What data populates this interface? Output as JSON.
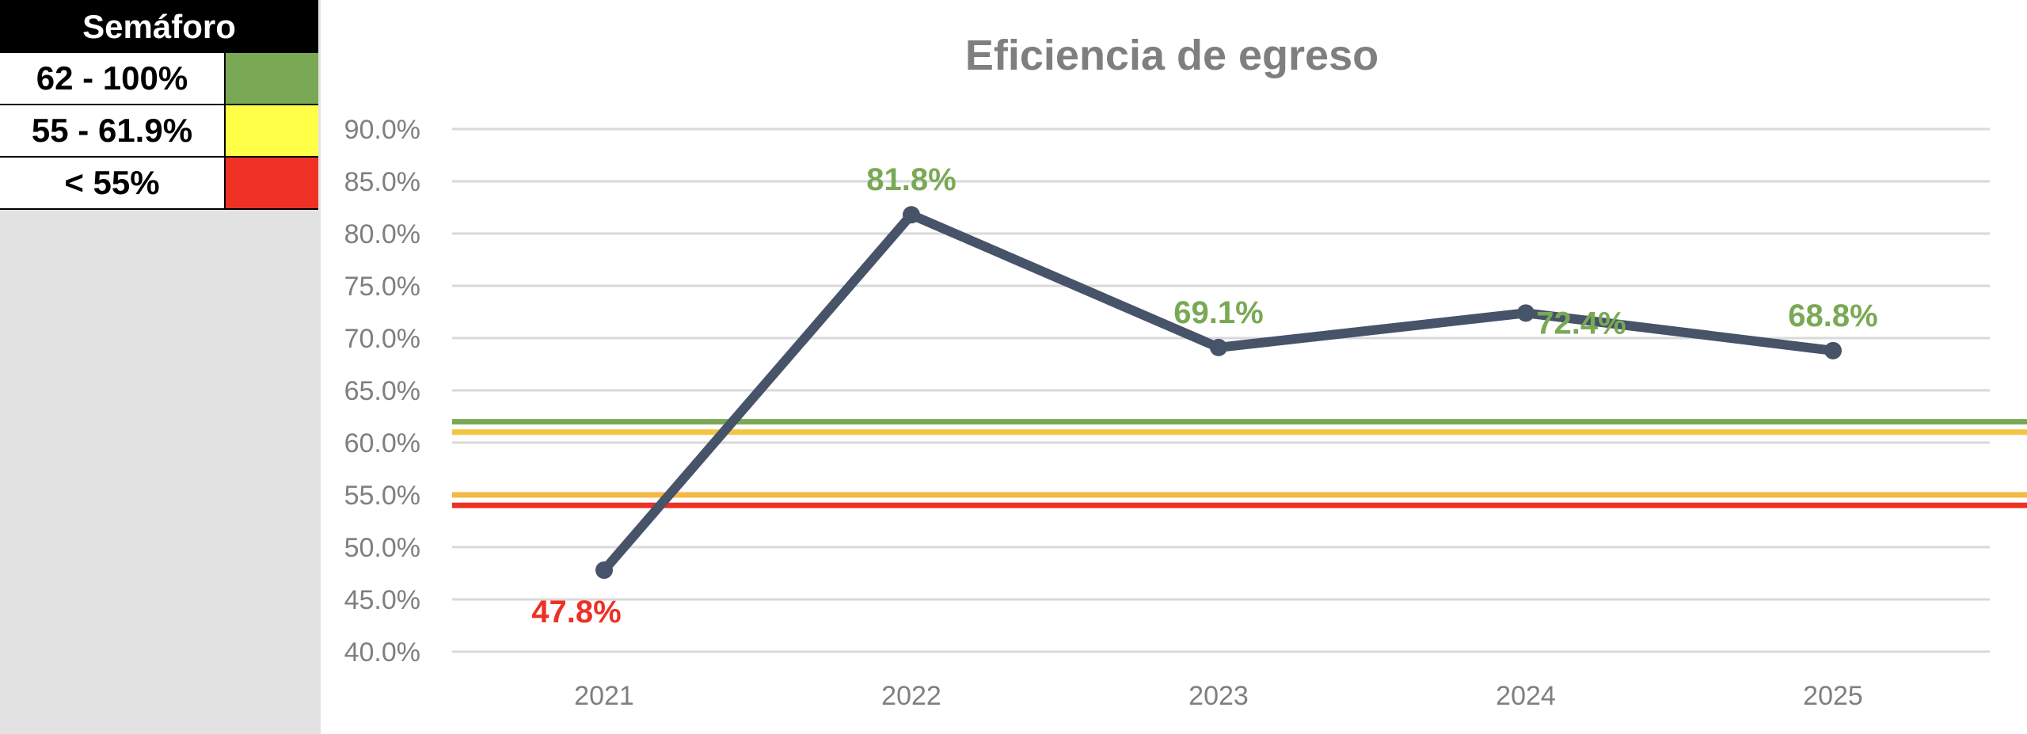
{
  "legend": {
    "title": "Semáforo",
    "rows": [
      {
        "label": "62 - 100%",
        "color": "#7aa955"
      },
      {
        "label": "55 - 61.9%",
        "color": "#ffff47"
      },
      {
        "label": "< 55%",
        "color": "#ee3124"
      }
    ]
  },
  "chart_data": {
    "type": "line",
    "title": "Eficiencia de egreso",
    "categories": [
      "2021",
      "2022",
      "2023",
      "2024",
      "2025"
    ],
    "series": [
      {
        "name": "Eficiencia de egreso",
        "values": [
          47.8,
          81.8,
          69.1,
          72.4,
          68.8
        ],
        "color": "#465368"
      }
    ],
    "data_labels": [
      "47.8%",
      "81.8%",
      "69.1%",
      "72.4%",
      "68.8%"
    ],
    "data_label_colors": [
      "#ee3124",
      "#7aa955",
      "#7aa955",
      "#7aa955",
      "#7aa955"
    ],
    "ylim": [
      40,
      90
    ],
    "y_tick_step": 5,
    "y_tick_labels": [
      "40.0%",
      "45.0%",
      "50.0%",
      "55.0%",
      "60.0%",
      "65.0%",
      "70.0%",
      "75.0%",
      "80.0%",
      "85.0%",
      "90.0%"
    ],
    "threshold_lines": [
      {
        "value": 62,
        "color": "#7aa955"
      },
      {
        "value": 61,
        "color": "#f4c542"
      },
      {
        "value": 55,
        "color": "#f4b942"
      },
      {
        "value": 54,
        "color": "#ee3124"
      }
    ],
    "grid": true,
    "xlabel": "",
    "ylabel": ""
  }
}
